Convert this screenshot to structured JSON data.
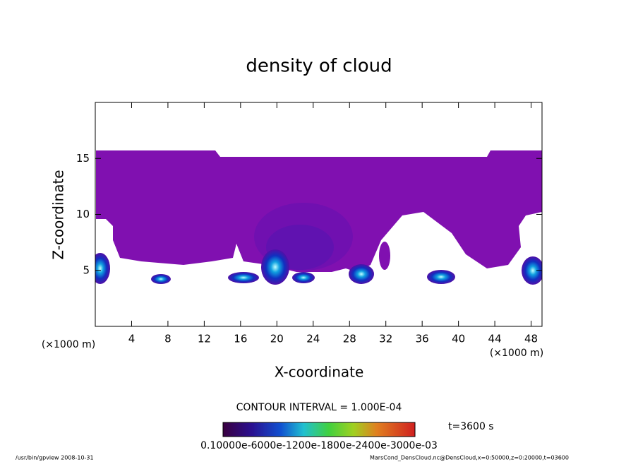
{
  "chart_data": {
    "type": "contour",
    "title": "density of cloud",
    "x_label": "X-coordinate",
    "y_label": "Z-coordinate",
    "x_unit": "(×1000 m)",
    "y_unit": "(×1000 m)",
    "xlim": [
      0,
      49.2
    ],
    "ylim": [
      0,
      20
    ],
    "xticks": [
      4,
      8,
      12,
      16,
      20,
      24,
      28,
      32,
      36,
      40,
      44,
      48
    ],
    "yticks": [
      5,
      10,
      15
    ],
    "contour_interval": "CONTOUR INTERVAL = 1.000E-04",
    "colorbar_labels": "0.10000e-6000e-1200e-1800e-2400e-3000e-03",
    "time_label": "t=3600 s",
    "footer_left": "/usr/bin/gpview   2008-10-31",
    "footer_right": "MarsCond_DensCloud.nc@DensCloud,x=0:50000,z=0:20000,t=03600"
  }
}
